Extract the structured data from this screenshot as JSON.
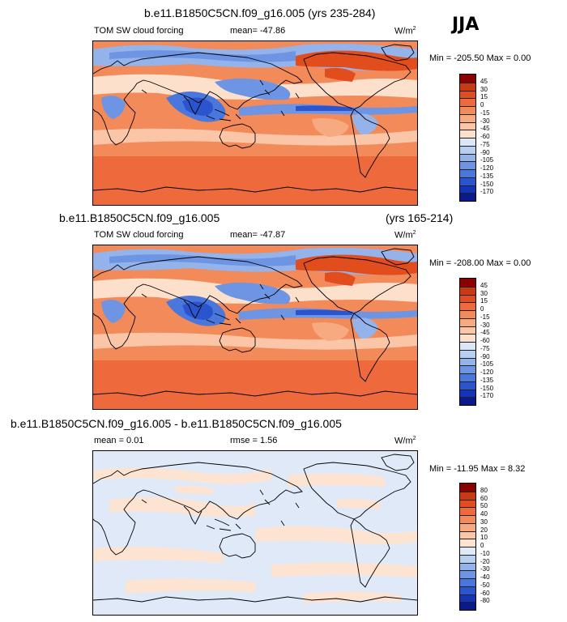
{
  "season_label": "JJA",
  "panels": [
    {
      "title": "b.e11.B1850C5CN.f09_g16.005 (yrs 235-284)",
      "title_right": "",
      "variable": "TOM SW cloud forcing",
      "stat1": "mean= -47.86",
      "stat2": "",
      "units": "W/m",
      "units_sup": "2",
      "minmax": "Min = -205.50 Max =    0.00",
      "colorbar": {
        "ticks": [
          "45",
          "30",
          "15",
          "0",
          "-15",
          "-30",
          "-45",
          "-60",
          "-75",
          "-90",
          "-105",
          "-120",
          "-135",
          "-150",
          "-170"
        ],
        "colors": [
          "#8b0000",
          "#c83a12",
          "#e14d1c",
          "#ee6a3c",
          "#f38a5a",
          "#f7aa80",
          "#fbc6a8",
          "#fde0cc",
          "#dbe7f7",
          "#b9cff1",
          "#93b3ea",
          "#6e95e3",
          "#4a77dc",
          "#2a55cf",
          "#1533b9",
          "#0a1a8c"
        ]
      }
    },
    {
      "title": "b.e11.B1850C5CN.f09_g16.005",
      "title_right": "(yrs 165-214)",
      "variable": "TOM SW cloud forcing",
      "stat1": "mean= -47.87",
      "stat2": "",
      "units": "W/m",
      "units_sup": "2",
      "minmax": "Min = -208.00 Max =    0.00",
      "colorbar": {
        "ticks": [
          "45",
          "30",
          "15",
          "0",
          "-15",
          "-30",
          "-45",
          "-60",
          "-75",
          "-90",
          "-105",
          "-120",
          "-135",
          "-150",
          "-170"
        ],
        "colors": [
          "#8b0000",
          "#c83a12",
          "#e14d1c",
          "#ee6a3c",
          "#f38a5a",
          "#f7aa80",
          "#fbc6a8",
          "#fde0cc",
          "#dbe7f7",
          "#b9cff1",
          "#93b3ea",
          "#6e95e3",
          "#4a77dc",
          "#2a55cf",
          "#1533b9",
          "#0a1a8c"
        ]
      }
    },
    {
      "title": "b.e11.B1850C5CN.f09_g16.005 - b.e11.B1850C5CN.f09_g16.005",
      "title_right": "",
      "variable": "",
      "stat1": "mean =   0.01",
      "stat2": "rmse =   1.56",
      "units": "W/m",
      "units_sup": "2",
      "minmax": "Min = -11.95 Max =   8.32",
      "colorbar": {
        "ticks": [
          "80",
          "60",
          "50",
          "40",
          "30",
          "20",
          "10",
          "0",
          "-10",
          "-20",
          "-30",
          "-40",
          "-50",
          "-60",
          "-80"
        ],
        "colors": [
          "#8b0000",
          "#c83a12",
          "#e14d1c",
          "#ee6a3c",
          "#f38a5a",
          "#f7aa80",
          "#fbc6a8",
          "#fde4d2",
          "#dfe9f8",
          "#b9cff1",
          "#93b3ea",
          "#6e95e3",
          "#4a77dc",
          "#2a55cf",
          "#1533b9",
          "#0a1a8c"
        ]
      }
    }
  ],
  "icons": {
    "map": "world-map-contour"
  }
}
